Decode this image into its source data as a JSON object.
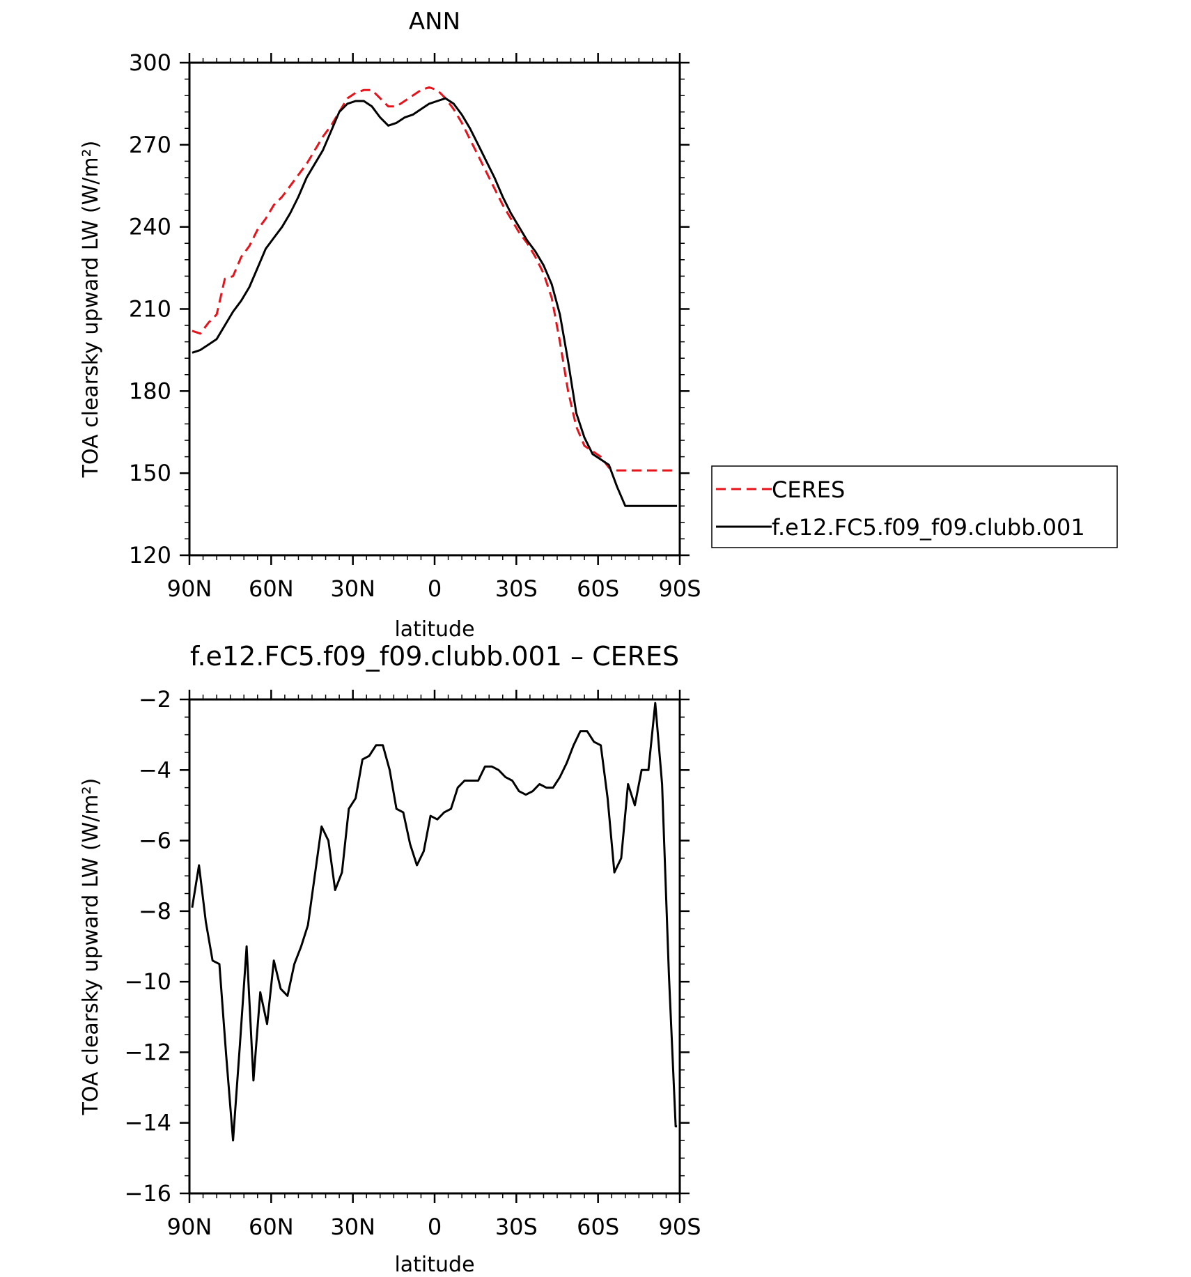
{
  "chart_data": [
    {
      "type": "line",
      "title": "ANN",
      "xlabel": "latitude",
      "ylabel": "TOA clearsky upward LW (W/m²)",
      "xlim": [
        90,
        -90
      ],
      "ylim": [
        120,
        300
      ],
      "x_ticks": [
        {
          "value": 90,
          "label": "90N"
        },
        {
          "value": 60,
          "label": "60N"
        },
        {
          "value": 30,
          "label": "30N"
        },
        {
          "value": 0,
          "label": "0"
        },
        {
          "value": -30,
          "label": "30S"
        },
        {
          "value": -60,
          "label": "60S"
        },
        {
          "value": -90,
          "label": "90S"
        }
      ],
      "y_ticks": [
        {
          "value": 120,
          "label": "120"
        },
        {
          "value": 150,
          "label": "150"
        },
        {
          "value": 180,
          "label": "180"
        },
        {
          "value": 210,
          "label": "210"
        },
        {
          "value": 240,
          "label": "240"
        },
        {
          "value": 270,
          "label": "270"
        },
        {
          "value": 300,
          "label": "300"
        }
      ],
      "legend": "outside-right",
      "series": [
        {
          "name": "CERES",
          "color": "#e8121b",
          "style": "dashed",
          "x": [
            89,
            86,
            83,
            80,
            77,
            74,
            71,
            68,
            65,
            62,
            59,
            56,
            53,
            50,
            47,
            44,
            41,
            38,
            35,
            32,
            29,
            26,
            23,
            20,
            17,
            14,
            11,
            8,
            5,
            2,
            -1,
            -4,
            -7,
            -10,
            -13,
            -16,
            -19,
            -22,
            -25,
            -28,
            -31,
            -34,
            -37,
            -40,
            -43,
            -46,
            -49,
            -52,
            -55,
            -58,
            -61,
            -64,
            -67,
            -70,
            -73,
            -76,
            -79,
            -82,
            -85,
            -88,
            -89
          ],
          "y": [
            202,
            201,
            205,
            208,
            221,
            222,
            229,
            233,
            239,
            243,
            248,
            251,
            255,
            259,
            263,
            268,
            273,
            277,
            282,
            287,
            289,
            290,
            290,
            287,
            284,
            284,
            286,
            288,
            290,
            291,
            290,
            287,
            283,
            278,
            272,
            266,
            260,
            254,
            248,
            243,
            238,
            234,
            229,
            223,
            214,
            198,
            180,
            167,
            160,
            158,
            156,
            152,
            151,
            151,
            151,
            151,
            151,
            151,
            151,
            151,
            151
          ]
        },
        {
          "name": "f.e12.FC5.f09_f09.clubb.001",
          "color": "#000000",
          "style": "solid",
          "x": [
            89,
            86,
            83,
            80,
            77,
            74,
            71,
            68,
            65,
            62,
            59,
            56,
            53,
            50,
            47,
            44,
            41,
            38,
            35,
            32,
            29,
            26,
            23,
            20,
            17,
            14,
            11,
            8,
            5,
            2,
            -1,
            -4,
            -7,
            -10,
            -13,
            -16,
            -19,
            -22,
            -25,
            -28,
            -31,
            -34,
            -37,
            -40,
            -43,
            -46,
            -49,
            -52,
            -55,
            -58,
            -61,
            -64,
            -67,
            -70,
            -73,
            -76,
            -79,
            -82,
            -85,
            -88,
            -89
          ],
          "y": [
            194,
            195,
            197,
            199,
            204,
            209,
            213,
            218,
            225,
            232,
            236,
            240,
            245,
            251,
            258,
            263,
            268,
            275,
            282,
            285,
            286,
            286,
            284,
            280,
            277,
            278,
            280,
            281,
            283,
            285,
            286,
            287,
            285,
            281,
            276,
            270,
            264,
            258,
            251,
            245,
            240,
            235,
            231,
            226,
            219,
            208,
            191,
            172,
            163,
            157,
            155,
            153,
            145,
            138,
            138,
            138,
            138,
            138,
            138,
            138,
            138
          ]
        }
      ]
    },
    {
      "type": "line",
      "title": "f.e12.FC5.f09_f09.clubb.001 – CERES",
      "xlabel": "latitude",
      "ylabel": "TOA clearsky upward LW (W/m²)",
      "xlim": [
        90,
        -90
      ],
      "ylim": [
        -16,
        -2
      ],
      "x_ticks": [
        {
          "value": 90,
          "label": "90N"
        },
        {
          "value": 60,
          "label": "60N"
        },
        {
          "value": 30,
          "label": "30N"
        },
        {
          "value": 0,
          "label": "0"
        },
        {
          "value": -30,
          "label": "30S"
        },
        {
          "value": -60,
          "label": "60S"
        },
        {
          "value": -90,
          "label": "90S"
        }
      ],
      "y_ticks": [
        {
          "value": -16,
          "label": "−16"
        },
        {
          "value": -14,
          "label": "−14"
        },
        {
          "value": -12,
          "label": "−12"
        },
        {
          "value": -10,
          "label": "−10"
        },
        {
          "value": -8,
          "label": "−8"
        },
        {
          "value": -6,
          "label": "−6"
        },
        {
          "value": -4,
          "label": "−4"
        },
        {
          "value": -2,
          "label": "−2"
        }
      ],
      "series": [
        {
          "color": "#000000",
          "style": "solid",
          "x": [
            89,
            86.5,
            84,
            81.5,
            79,
            76.5,
            74,
            71.5,
            69,
            66.5,
            64,
            61.5,
            59,
            56.5,
            54,
            51.5,
            49,
            46.5,
            44,
            41.5,
            39,
            36.5,
            34,
            31.5,
            29,
            26.5,
            24,
            21.5,
            19,
            16.5,
            14,
            11.5,
            9,
            6.5,
            4,
            1.5,
            -1,
            -3.5,
            -6,
            -8.5,
            -11,
            -13.5,
            -16,
            -18.5,
            -21,
            -23.5,
            -26,
            -28.5,
            -31,
            -33.5,
            -36,
            -38.5,
            -41,
            -43.5,
            -46,
            -48.5,
            -51,
            -53.5,
            -56,
            -58.5,
            -61,
            -63.5,
            -66,
            -68.5,
            -71,
            -73.5,
            -76,
            -78.5,
            -81,
            -83.5,
            -86,
            -88.5,
            -89
          ],
          "y": [
            -7.9,
            -6.7,
            -8.3,
            -9.4,
            -9.5,
            -12.1,
            -14.5,
            -11.8,
            -9.0,
            -12.8,
            -10.3,
            -11.2,
            -9.4,
            -10.2,
            -10.4,
            -9.5,
            -9.0,
            -8.4,
            -7.0,
            -5.6,
            -6.0,
            -7.4,
            -6.9,
            -5.1,
            -4.8,
            -3.7,
            -3.6,
            -3.3,
            -3.3,
            -4.0,
            -5.1,
            -5.2,
            -6.1,
            -6.7,
            -6.3,
            -5.3,
            -5.4,
            -5.2,
            -5.1,
            -4.5,
            -4.3,
            -4.3,
            -4.3,
            -3.9,
            -3.9,
            -4.0,
            -4.2,
            -4.3,
            -4.6,
            -4.7,
            -4.6,
            -4.4,
            -4.5,
            -4.5,
            -4.2,
            -3.8,
            -3.3,
            -2.9,
            -2.9,
            -3.2,
            -3.3,
            -4.8,
            -6.9,
            -6.5,
            -4.4,
            -5.0,
            -4.0,
            -4.0,
            -2.1,
            -4.4,
            -9.8,
            -14.1,
            -14.1
          ]
        }
      ]
    }
  ]
}
